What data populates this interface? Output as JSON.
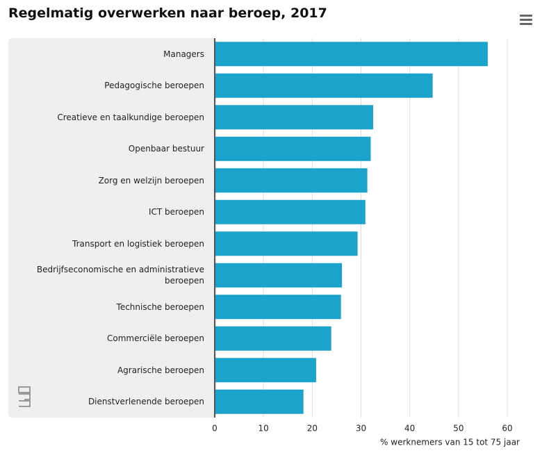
{
  "chart_data": {
    "type": "barh",
    "title": "Regelmatig overwerken naar beroep, 2017",
    "x_label": "% werknemers van 15 tot 75 jaar",
    "categories": [
      "Managers",
      "Pedagogische beroepen",
      "Creatieve en taalkundige beroepen",
      "Openbaar bestuur",
      "Zorg en welzijn beroepen",
      "ICT beroepen",
      "Transport en logistiek beroepen",
      "Bedrijfseconomische en administratieve beroepen",
      "Technische beroepen",
      "Commerciële beroepen",
      "Agrarische beroepen",
      "Dienstverlenende beroepen"
    ],
    "values": [
      56.0,
      44.7,
      32.5,
      32.0,
      31.3,
      30.9,
      29.3,
      26.1,
      25.9,
      23.9,
      20.8,
      18.2
    ],
    "color": "#1ba3cc",
    "xlim": [
      0,
      60
    ],
    "xticks": [
      0,
      10,
      20,
      30,
      40,
      50,
      60
    ],
    "grid": true
  }
}
